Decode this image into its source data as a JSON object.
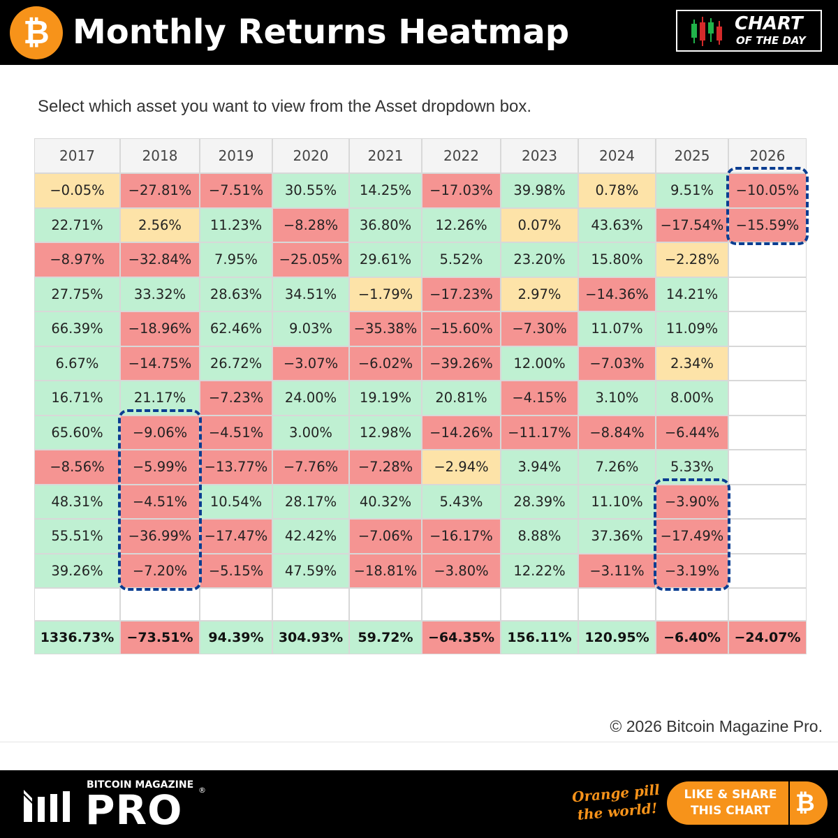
{
  "header": {
    "title": "Monthly Returns Heatmap",
    "logo_icon": "bitcoin-icon",
    "badge_line1": "CHART",
    "badge_line2": "OF THE DAY",
    "badge_icon": "candlestick-icon"
  },
  "subtitle": "Select which asset you want to view from the Asset dropdown box.",
  "chart_data": {
    "type": "heatmap",
    "title": "",
    "x": [
      "2017",
      "2018",
      "2019",
      "2020",
      "2021",
      "2022",
      "2023",
      "2024",
      "2025",
      "2026"
    ],
    "values": [
      [
        "−0.05%",
        "−27.81%",
        "−7.51%",
        "30.55%",
        "14.25%",
        "−17.03%",
        "39.98%",
        "0.78%",
        "9.51%",
        "−10.05%"
      ],
      [
        "22.71%",
        "2.56%",
        "11.23%",
        "−8.28%",
        "36.80%",
        "12.26%",
        "0.07%",
        "43.63%",
        "−17.54%",
        "−15.59%"
      ],
      [
        "−8.97%",
        "−32.84%",
        "7.95%",
        "−25.05%",
        "29.61%",
        "5.52%",
        "23.20%",
        "15.80%",
        "−2.28%",
        ""
      ],
      [
        "27.75%",
        "33.32%",
        "28.63%",
        "34.51%",
        "−1.79%",
        "−17.23%",
        "2.97%",
        "−14.36%",
        "14.21%",
        ""
      ],
      [
        "66.39%",
        "−18.96%",
        "62.46%",
        "9.03%",
        "−35.38%",
        "−15.60%",
        "−7.30%",
        "11.07%",
        "11.09%",
        ""
      ],
      [
        "6.67%",
        "−14.75%",
        "26.72%",
        "−3.07%",
        "−6.02%",
        "−39.26%",
        "12.00%",
        "−7.03%",
        "2.34%",
        ""
      ],
      [
        "16.71%",
        "21.17%",
        "−7.23%",
        "24.00%",
        "19.19%",
        "20.81%",
        "−4.15%",
        "3.10%",
        "8.00%",
        ""
      ],
      [
        "65.60%",
        "−9.06%",
        "−4.51%",
        "3.00%",
        "12.98%",
        "−14.26%",
        "−11.17%",
        "−8.84%",
        "−6.44%",
        ""
      ],
      [
        "−8.56%",
        "−5.99%",
        "−13.77%",
        "−7.76%",
        "−7.28%",
        "−2.94%",
        "3.94%",
        "7.26%",
        "5.33%",
        ""
      ],
      [
        "48.31%",
        "−4.51%",
        "10.54%",
        "28.17%",
        "40.32%",
        "5.43%",
        "28.39%",
        "11.10%",
        "−3.90%",
        ""
      ],
      [
        "55.51%",
        "−36.99%",
        "−17.47%",
        "42.42%",
        "−7.06%",
        "−16.17%",
        "8.88%",
        "37.36%",
        "−17.49%",
        ""
      ],
      [
        "39.26%",
        "−7.20%",
        "−5.15%",
        "47.59%",
        "−18.81%",
        "−3.80%",
        "12.22%",
        "−3.11%",
        "−3.19%",
        ""
      ]
    ],
    "totals": [
      "1336.73%",
      "−73.51%",
      "94.39%",
      "304.93%",
      "59.72%",
      "−64.35%",
      "156.11%",
      "120.95%",
      "−6.40%",
      "−24.07%"
    ],
    "colors": {
      "positive": "#bff0d2",
      "negative": "#f59492",
      "neutral": "#fde3a8"
    },
    "highlight_color": "#0a3d91",
    "highlights": [
      {
        "year": "2026",
        "rows": [
          0,
          1
        ]
      },
      {
        "year": "2018",
        "rows": [
          7,
          11
        ]
      },
      {
        "year": "2025",
        "rows": [
          9,
          11
        ]
      }
    ]
  },
  "copyright": "© 2026 Bitcoin Magazine Pro.",
  "footer": {
    "brand_top": "BITCOIN MAGAZINE",
    "brand_main": "PRO",
    "brand_icon": "bars-icon",
    "slogan_line1": "Orange pill",
    "slogan_line2": "the world!",
    "share_line1": "LIKE & SHARE",
    "share_line2": "THIS CHART",
    "share_icon": "bitcoin-icon",
    "accent": "#f7931a"
  }
}
